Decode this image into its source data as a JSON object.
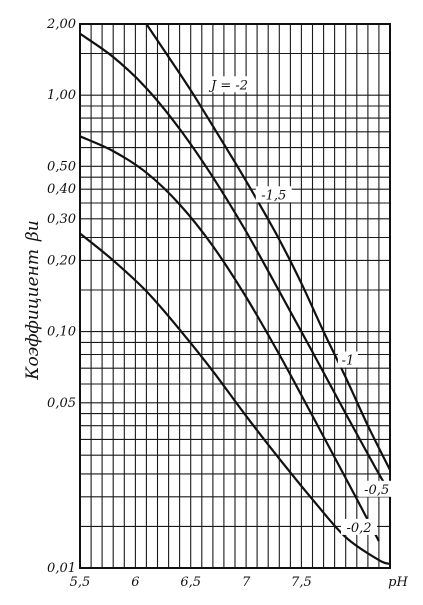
{
  "chart_data": {
    "type": "line",
    "title": "",
    "xlabel": "pH",
    "ylabel": "Коэффициент",
    "ylabel_symbol": "βи",
    "xlim": [
      5.5,
      8.3
    ],
    "ylim": [
      0.01,
      2.0
    ],
    "y_scale": "log",
    "grid": true,
    "x_ticks": [
      {
        "value": 5.5,
        "label": "5,5"
      },
      {
        "value": 6.0,
        "label": "6"
      },
      {
        "value": 6.5,
        "label": "6,5"
      },
      {
        "value": 7.0,
        "label": "7"
      },
      {
        "value": 7.5,
        "label": "7,5"
      }
    ],
    "x_unit_label": "pH",
    "y_ticks": [
      {
        "value": 2.0,
        "label": "2,00"
      },
      {
        "value": 1.0,
        "label": "1,00"
      },
      {
        "value": 0.5,
        "label": "0,50"
      },
      {
        "value": 0.4,
        "label": "0,40"
      },
      {
        "value": 0.3,
        "label": "0,30"
      },
      {
        "value": 0.2,
        "label": "0,20"
      },
      {
        "value": 0.1,
        "label": "0,10"
      },
      {
        "value": 0.05,
        "label": "0,05"
      },
      {
        "value": 0.01,
        "label": "0,01"
      }
    ],
    "series": [
      {
        "name": "J = -2",
        "label_at": [
          6.85,
          1.08
        ],
        "x": [
          6.1,
          6.3,
          6.5,
          6.7,
          6.9,
          7.1,
          7.3,
          7.5,
          7.7,
          7.9,
          8.1,
          8.3
        ],
        "y": [
          2.0,
          1.45,
          1.05,
          0.74,
          0.52,
          0.36,
          0.245,
          0.16,
          0.1,
          0.064,
          0.04,
          0.026
        ]
      },
      {
        "name": "-1,5",
        "label_at": [
          7.25,
          0.37
        ],
        "x": [
          5.5,
          5.8,
          6.1,
          6.4,
          6.7,
          7.0,
          7.3,
          7.6,
          7.9,
          8.2,
          8.3
        ],
        "y": [
          1.82,
          1.45,
          1.07,
          0.72,
          0.45,
          0.265,
          0.148,
          0.082,
          0.045,
          0.025,
          0.021
        ]
      },
      {
        "name": "-1",
        "label_at": [
          7.92,
          0.074
        ],
        "x": [
          5.5,
          5.8,
          6.1,
          6.4,
          6.7,
          7.0,
          7.3,
          7.6,
          7.9,
          8.2
        ],
        "y": [
          0.67,
          0.58,
          0.47,
          0.345,
          0.23,
          0.14,
          0.08,
          0.044,
          0.024,
          0.013
        ]
      },
      {
        "name": "-0,5",
        "label_at": [
          8.18,
          0.021
        ],
        "x": [
          5.5,
          5.8,
          6.1,
          6.4,
          6.7,
          7.0,
          7.3,
          7.6,
          7.9,
          8.2,
          8.3
        ],
        "y": [
          0.26,
          0.2,
          0.148,
          0.102,
          0.068,
          0.044,
          0.029,
          0.0195,
          0.0135,
          0.0108,
          0.0104
        ]
      },
      {
        "name": "-0,2",
        "label_at": [
          8.02,
          0.0145
        ],
        "x": [],
        "y": []
      }
    ]
  }
}
